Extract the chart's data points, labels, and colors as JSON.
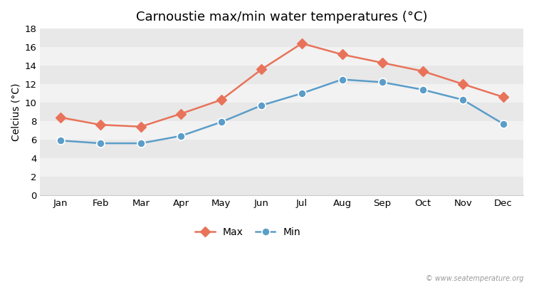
{
  "title": "Carnoustie max/min water temperatures (°C)",
  "ylabel": "Celcius (°C)",
  "months": [
    "Jan",
    "Feb",
    "Mar",
    "Apr",
    "May",
    "Jun",
    "Jul",
    "Aug",
    "Sep",
    "Oct",
    "Nov",
    "Dec"
  ],
  "max_values": [
    8.4,
    7.6,
    7.4,
    8.8,
    10.3,
    13.6,
    16.4,
    15.2,
    14.3,
    13.4,
    12.0,
    10.6
  ],
  "min_values": [
    5.9,
    5.6,
    5.6,
    6.4,
    7.9,
    9.7,
    11.0,
    12.5,
    12.2,
    11.4,
    10.3,
    7.7
  ],
  "max_color": "#e8735a",
  "min_color": "#5b9dc9",
  "figure_bg": "#ffffff",
  "plot_bg": "#ffffff",
  "band_color_dark": "#e8e8e8",
  "band_color_light": "#f2f2f2",
  "ylim": [
    0,
    18
  ],
  "yticks": [
    0,
    2,
    4,
    6,
    8,
    10,
    12,
    14,
    16,
    18
  ],
  "watermark": "© www.seatemperature.org",
  "legend_max": "Max",
  "legend_min": "Min",
  "title_fontsize": 13,
  "label_fontsize": 10,
  "tick_fontsize": 9.5,
  "marker_size_max": 7,
  "marker_size_min": 8,
  "line_width": 1.8
}
